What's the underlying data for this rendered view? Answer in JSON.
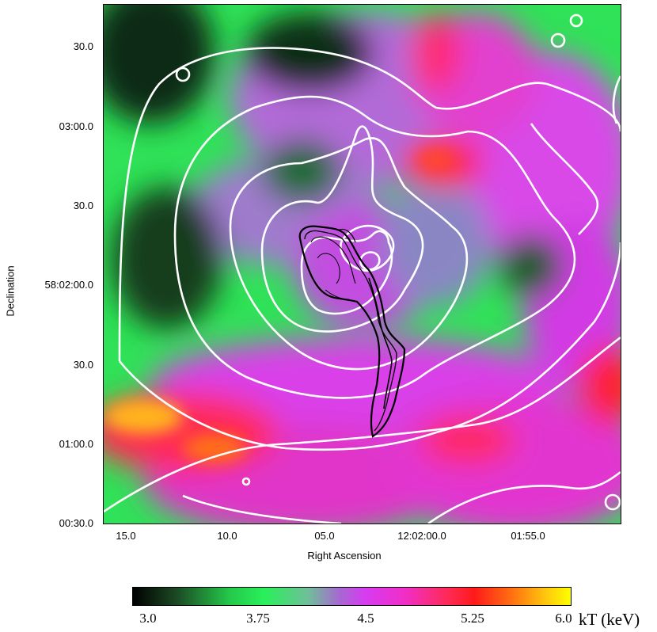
{
  "map": {
    "y_axis": {
      "label": "Declination",
      "ticks": [
        "30.0",
        "03:00.0",
        "30.0",
        "58:02:00.0",
        "30.0",
        "01:00.0",
        "00:30.0"
      ]
    },
    "x_axis": {
      "label": "Right Ascension",
      "ticks": [
        "15.0",
        "10.0",
        "05.0",
        "12:02:00.0",
        "01:55.0"
      ]
    }
  },
  "colorbar": {
    "ticks": [
      "3.0",
      "3.75",
      "4.5",
      "5.25",
      "6.0"
    ],
    "unit": "kT (keV)",
    "colors": {
      "low": "#000000",
      "mid_low": "#29f05a",
      "mid": "#d63cf0",
      "mid_high": "#ff1a1a",
      "high": "#ffff00"
    }
  },
  "overlays": {
    "xray_contours_color": "#ffffff",
    "radio_contours_color": "#000000"
  }
}
